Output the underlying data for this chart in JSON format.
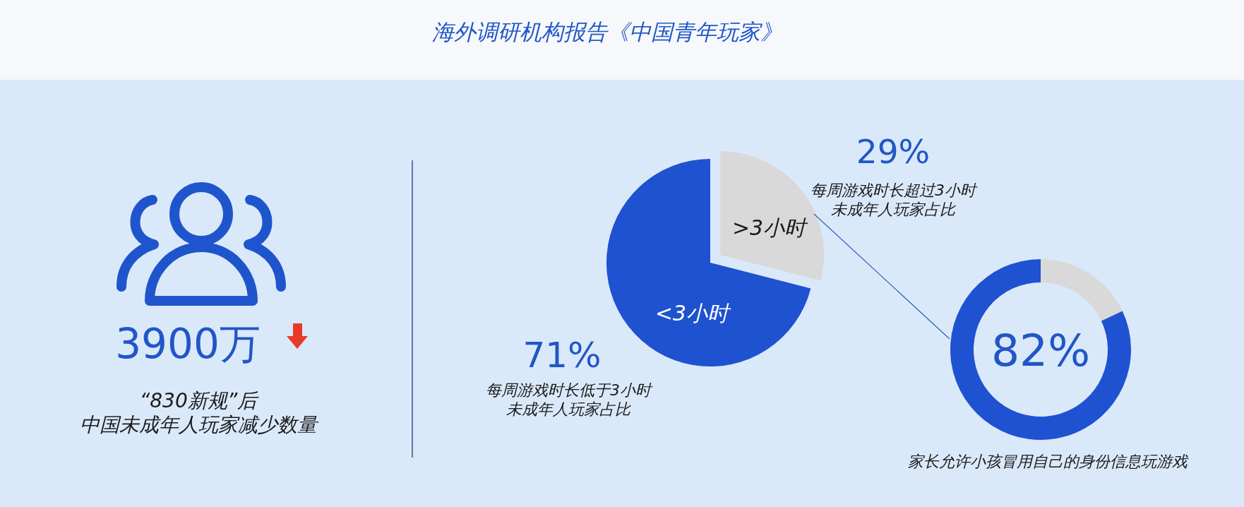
{
  "chart_data": [
    {
      "type": "other",
      "title": "海外调研机构报告《中国青年玩家》",
      "annotations": [
        "3900万",
        "“830新规”后",
        "中国未成年人玩家减少数量"
      ]
    },
    {
      "type": "pie",
      "categories": [
        ">3小时",
        "<3小时"
      ],
      "values": [
        29,
        71
      ],
      "colors": [
        "#d9d9d9",
        "#1f52d0"
      ],
      "value_labels": [
        "29%",
        "71%"
      ],
      "annotations": [
        "每周游戏时长超过3小时",
        "未成年人玩家占比",
        "每周游戏时长低于3小时",
        "未成年人玩家占比"
      ]
    },
    {
      "type": "donut",
      "categories": [
        null,
        null
      ],
      "values": [
        18,
        82
      ],
      "colors": [
        "#d9d9d9",
        "#1f52d0"
      ],
      "value_labels": [
        null,
        "82%"
      ],
      "annotations": [
        "家长允许小孩冒用自己的身份信息玩游戏"
      ]
    }
  ]
}
